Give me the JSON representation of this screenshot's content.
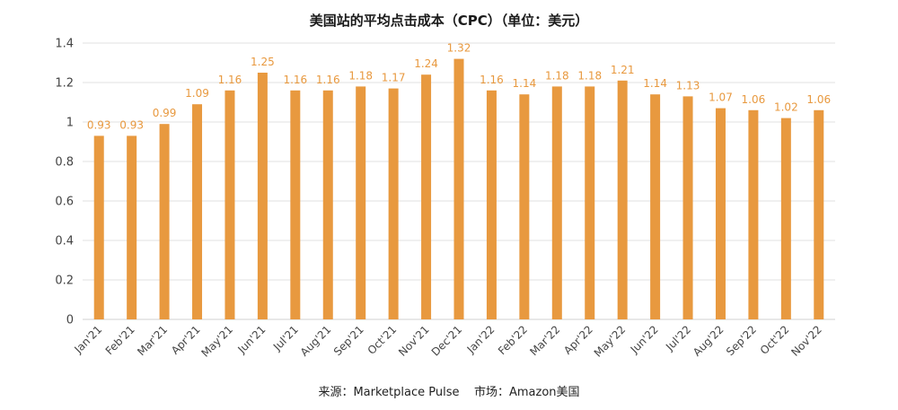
{
  "chart_data": {
    "type": "bar",
    "title": "美国站的平均点击成本（CPC）（单位：美元）",
    "categories": [
      "Jan'21",
      "Feb'21",
      "Mar'21",
      "Apr'21",
      "May'21",
      "Jun'21",
      "Jul'21",
      "Aug'21",
      "Sep'21",
      "Oct'21",
      "Nov'21",
      "Dec'21",
      "Jan'22",
      "Feb'22",
      "Mar'22",
      "Apr'22",
      "May'22",
      "Jun'22",
      "Jul'22",
      "Aug'22",
      "Sep'22",
      "Oct'22",
      "Nov'22"
    ],
    "values": [
      0.93,
      0.93,
      0.99,
      1.09,
      1.16,
      1.25,
      1.16,
      1.16,
      1.18,
      1.17,
      1.24,
      1.32,
      1.16,
      1.14,
      1.18,
      1.18,
      1.21,
      1.14,
      1.13,
      1.07,
      1.06,
      1.02,
      1.06
    ],
    "value_labels": [
      "0.93",
      "0.93",
      "0.99",
      "1.09",
      "1.16",
      "1.25",
      "1.16",
      "1.16",
      "1.18",
      "1.17",
      "1.24",
      "1.32",
      "1.16",
      "1.14",
      "1.18",
      "1.18",
      "1.21",
      "1.14",
      "1.13",
      "1.07",
      "1.06",
      "1.02",
      "1.06"
    ],
    "xlabel": "",
    "ylabel": "",
    "ylim": [
      0,
      1.4
    ],
    "yticks": [
      0,
      0.2,
      0.4,
      0.6,
      0.8,
      1,
      1.2,
      1.4
    ],
    "ytick_labels": [
      "0",
      "0.2",
      "0.4",
      "0.6",
      "0.8",
      "1",
      "1.2",
      "1.4"
    ],
    "grid": true,
    "bar_color": "#e8993f",
    "label_color": "#e8993f",
    "source": "来源：Marketplace Pulse    市场：Amazon美国"
  }
}
